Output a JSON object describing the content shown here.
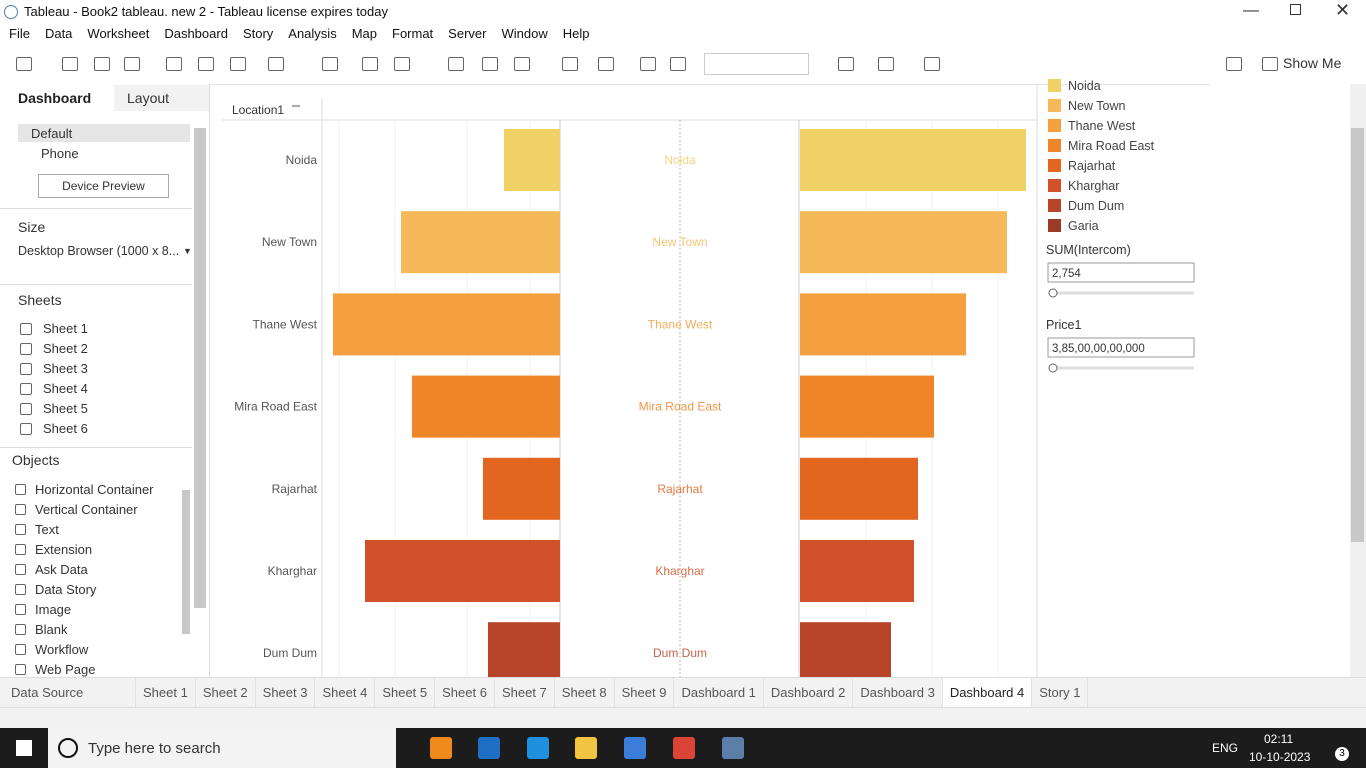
{
  "window": {
    "title": "Tableau - Book2 tableau. new 2 - Tableau license expires today"
  },
  "menu": [
    "File",
    "Data",
    "Worksheet",
    "Dashboard",
    "Story",
    "Analysis",
    "Map",
    "Format",
    "Server",
    "Window",
    "Help"
  ],
  "toolbar": {
    "show_me": "Show Me"
  },
  "left_panel": {
    "tabs": [
      "Dashboard",
      "Layout"
    ],
    "devices": [
      "Default",
      "Phone"
    ],
    "device_button": "Device Preview",
    "size_label": "Size",
    "size_value": "Desktop Browser (1000 x 8...",
    "sheets_label": "Sheets",
    "sheets": [
      "Sheet 1",
      "Sheet 2",
      "Sheet 3",
      "Sheet 4",
      "Sheet 5",
      "Sheet 6"
    ],
    "objects_label": "Objects",
    "objects": [
      "Horizontal Container",
      "Vertical Container",
      "Text",
      "Extension",
      "Ask Data",
      "Data Story",
      "Image",
      "Blank",
      "Workflow",
      "Web Page"
    ]
  },
  "chart_data": {
    "type": "bar",
    "header": "Location1",
    "categories": [
      "Noida",
      "New Town",
      "Thane West",
      "Mira Road East",
      "Rajarhat",
      "Kharghar",
      "Dum Dum"
    ],
    "colors": [
      "#f1d166",
      "#f5b95a",
      "#f4a03f",
      "#ef8429",
      "#e2661f",
      "#d1522a",
      "#b8452a"
    ],
    "left_values": [
      56,
      159,
      227,
      148,
      77,
      195,
      72
    ],
    "right_values": [
      226,
      207,
      166,
      134,
      118,
      114,
      91
    ],
    "xlim": [
      0,
      240
    ]
  },
  "legend": {
    "items": [
      "Noida",
      "New Town",
      "Thane West",
      "Mira Road East",
      "Rajarhat",
      "Kharghar",
      "Dum Dum",
      "Garia"
    ],
    "colors": [
      "#f1d166",
      "#f5b95a",
      "#f4a03f",
      "#ef8429",
      "#e2661f",
      "#d1522a",
      "#b8452a",
      "#9c3a28"
    ]
  },
  "filters": [
    {
      "label": "SUM(Intercom)",
      "value": "2,754"
    },
    {
      "label": "Price1",
      "value": "3,85,00,00,00,000"
    }
  ],
  "tabs": [
    "Data Source",
    "Sheet 1",
    "Sheet 2",
    "Sheet 3",
    "Sheet 4",
    "Sheet 5",
    "Sheet 6",
    "Sheet 7",
    "Sheet 8",
    "Sheet 9",
    "Dashboard 1",
    "Dashboard 2",
    "Dashboard 3",
    "Dashboard 4",
    "Story 1"
  ],
  "taskbar": {
    "search": "Type here to search",
    "lang": "ENG",
    "time": "02:11",
    "date": "10-10-2023",
    "badge": "3"
  }
}
